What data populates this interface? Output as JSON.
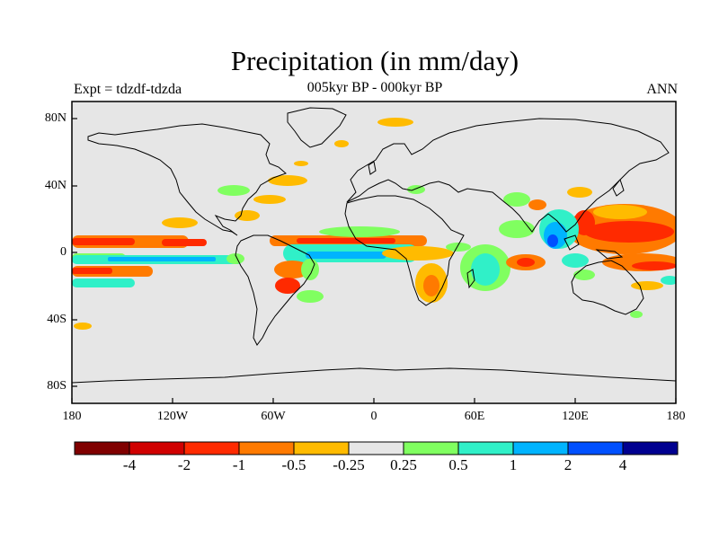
{
  "title": "Precipitation (in mm/day)",
  "subtitle": "005kyr BP - 000kyr BP",
  "left_label": "Expt = tdzdf-tdzda",
  "right_label": "ANN",
  "lat_ticks": [
    "80N",
    "40N",
    "0",
    "40S",
    "80S"
  ],
  "lon_ticks": [
    "180",
    "120W",
    "60W",
    "0",
    "60E",
    "120E",
    "180"
  ],
  "colorbar": {
    "colors": [
      "#800000",
      "#d00000",
      "#ff2a00",
      "#ff7a00",
      "#ffbb00",
      "#e6e6e6",
      "#80ff60",
      "#30f0c8",
      "#00b4ff",
      "#0050ff",
      "#000090"
    ],
    "labels": [
      "-4",
      "-2",
      "-1",
      "-0.5",
      "-0.25",
      "0.25",
      "0.5",
      "1",
      "2",
      "4"
    ]
  },
  "palette": {
    "background": "#e6e6e6",
    "coast": "#000000"
  }
}
